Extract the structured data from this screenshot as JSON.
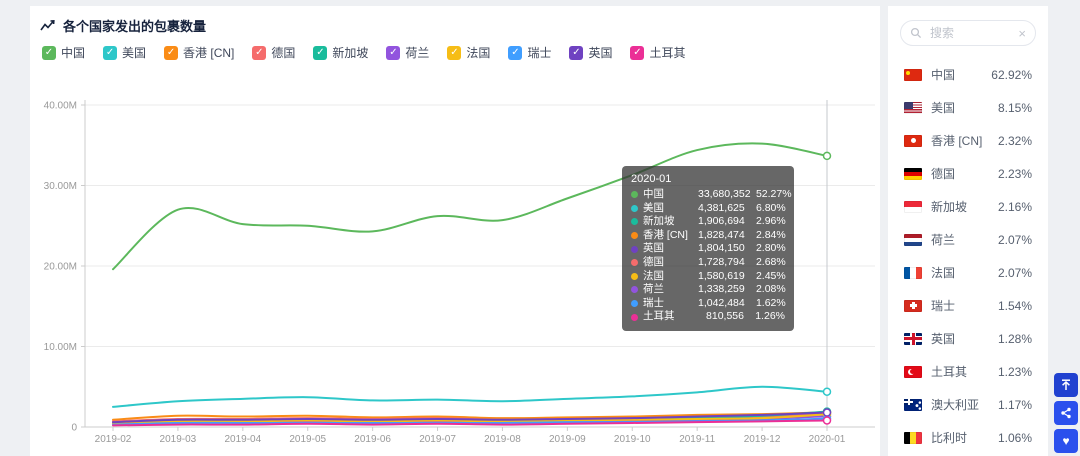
{
  "header": {
    "title": "各个国家发出的包裹数量"
  },
  "icons": {
    "trend": "trend-line",
    "checkbox_check_glyph": "✓",
    "search": "magnifier",
    "clear_glyph": "×",
    "back_to_top": "arrow-up-to-line",
    "share": "share-nodes",
    "favorite_glyph": "♥"
  },
  "legend": {
    "items": [
      {
        "label": "中国",
        "color": "#5cb85c",
        "checked": true
      },
      {
        "label": "美国",
        "color": "#2ec7c9",
        "checked": true
      },
      {
        "label": "香港 [CN]",
        "color": "#fa8c16",
        "checked": true
      },
      {
        "label": "德国",
        "color": "#f56c6c",
        "checked": true
      },
      {
        "label": "新加坡",
        "color": "#1abc9c",
        "checked": true
      },
      {
        "label": "荷兰",
        "color": "#9254de",
        "checked": true
      },
      {
        "label": "法国",
        "color": "#f6bd16",
        "checked": true
      },
      {
        "label": "瑞士",
        "color": "#409eff",
        "checked": true
      },
      {
        "label": "英国",
        "color": "#6f42c1",
        "checked": true
      },
      {
        "label": "土耳其",
        "color": "#eb2f96",
        "checked": true
      }
    ]
  },
  "chart_data": {
    "type": "line",
    "x": [
      "2019-02",
      "2019-03",
      "2019-04",
      "2019-05",
      "2019-06",
      "2019-07",
      "2019-08",
      "2019-09",
      "2019-10",
      "2019-11",
      "2019-12",
      "2020-01"
    ],
    "unit": "millions",
    "ylim": [
      0,
      40
    ],
    "y_ticks": [
      {
        "value": 40,
        "label": "40.00M"
      },
      {
        "value": 30,
        "label": "30.00M"
      },
      {
        "value": 20,
        "label": "20.00M"
      },
      {
        "value": 10,
        "label": "10.00M"
      },
      {
        "value": 0,
        "label": "0"
      }
    ],
    "grid": true,
    "legend_position": "top",
    "hover_index": 11,
    "series": [
      {
        "name": "中国",
        "color": "#5cb85c",
        "values": [
          19.6,
          27.0,
          25.2,
          25.0,
          24.3,
          26.2,
          25.7,
          28.4,
          31.3,
          34.4,
          35.2,
          33.68
        ]
      },
      {
        "name": "美国",
        "color": "#2ec7c9",
        "values": [
          2.5,
          3.2,
          3.5,
          3.7,
          3.3,
          3.4,
          3.2,
          3.5,
          3.8,
          4.3,
          5.0,
          4.38
        ]
      },
      {
        "name": "香港 [CN]",
        "color": "#fa8c16",
        "values": [
          0.9,
          1.4,
          1.3,
          1.4,
          1.2,
          1.3,
          1.1,
          1.2,
          1.3,
          1.5,
          1.6,
          1.83
        ]
      },
      {
        "name": "德国",
        "color": "#f56c6c",
        "values": [
          0.7,
          1.0,
          1.0,
          1.1,
          1.0,
          1.1,
          0.9,
          1.0,
          1.1,
          1.2,
          1.3,
          1.73
        ]
      },
      {
        "name": "新加坡",
        "color": "#1abc9c",
        "values": [
          0.5,
          0.8,
          0.8,
          0.9,
          0.8,
          0.9,
          0.8,
          0.9,
          1.0,
          1.2,
          1.4,
          1.91
        ]
      },
      {
        "name": "荷兰",
        "color": "#9254de",
        "values": [
          0.4,
          0.6,
          0.6,
          0.7,
          0.6,
          0.7,
          0.6,
          0.7,
          0.8,
          0.9,
          1.0,
          1.34
        ]
      },
      {
        "name": "法国",
        "color": "#f6bd16",
        "values": [
          0.5,
          0.7,
          0.7,
          0.8,
          0.7,
          0.8,
          0.7,
          0.8,
          0.9,
          1.0,
          1.1,
          1.58
        ]
      },
      {
        "name": "瑞士",
        "color": "#409eff",
        "values": [
          0.3,
          0.5,
          0.5,
          0.5,
          0.5,
          0.5,
          0.5,
          0.6,
          0.6,
          0.7,
          0.8,
          1.04
        ]
      },
      {
        "name": "英国",
        "color": "#6f42c1",
        "values": [
          0.6,
          0.9,
          0.9,
          1.0,
          0.9,
          1.0,
          0.9,
          1.0,
          1.1,
          1.3,
          1.5,
          1.8
        ]
      },
      {
        "name": "土耳其",
        "color": "#eb2f96",
        "values": [
          0.2,
          0.3,
          0.3,
          0.4,
          0.3,
          0.4,
          0.3,
          0.4,
          0.5,
          0.6,
          0.7,
          0.81
        ]
      }
    ]
  },
  "tooltip": {
    "title": "2020-01",
    "rows": [
      {
        "name": "中国",
        "value": "33,680,352",
        "percent": "52.27%",
        "color": "#5cb85c"
      },
      {
        "name": "美国",
        "value": "4,381,625",
        "percent": "6.80%",
        "color": "#2ec7c9"
      },
      {
        "name": "新加坡",
        "value": "1,906,694",
        "percent": "2.96%",
        "color": "#1abc9c"
      },
      {
        "name": "香港 [CN]",
        "value": "1,828,474",
        "percent": "2.84%",
        "color": "#fa8c16"
      },
      {
        "name": "英国",
        "value": "1,804,150",
        "percent": "2.80%",
        "color": "#6f42c1"
      },
      {
        "name": "德国",
        "value": "1,728,794",
        "percent": "2.68%",
        "color": "#f56c6c"
      },
      {
        "name": "法国",
        "value": "1,580,619",
        "percent": "2.45%",
        "color": "#f6bd16"
      },
      {
        "name": "荷兰",
        "value": "1,338,259",
        "percent": "2.08%",
        "color": "#9254de"
      },
      {
        "name": "瑞士",
        "value": "1,042,484",
        "percent": "1.62%",
        "color": "#409eff"
      },
      {
        "name": "土耳其",
        "value": "810,556",
        "percent": "1.26%",
        "color": "#eb2f96"
      }
    ]
  },
  "sidebar": {
    "search_placeholder": "搜索",
    "items": [
      {
        "name": "中国",
        "percent": "62.92%",
        "flag": "cn"
      },
      {
        "name": "美国",
        "percent": "8.15%",
        "flag": "us"
      },
      {
        "name": "香港 [CN]",
        "percent": "2.32%",
        "flag": "hk"
      },
      {
        "name": "德国",
        "percent": "2.23%",
        "flag": "de"
      },
      {
        "name": "新加坡",
        "percent": "2.16%",
        "flag": "sg"
      },
      {
        "name": "荷兰",
        "percent": "2.07%",
        "flag": "nl"
      },
      {
        "name": "法国",
        "percent": "2.07%",
        "flag": "fr"
      },
      {
        "name": "瑞士",
        "percent": "1.54%",
        "flag": "ch"
      },
      {
        "name": "英国",
        "percent": "1.28%",
        "flag": "gb"
      },
      {
        "name": "土耳其",
        "percent": "1.23%",
        "flag": "tr"
      },
      {
        "name": "澳大利亚",
        "percent": "1.17%",
        "flag": "au"
      },
      {
        "name": "比利时",
        "percent": "1.06%",
        "flag": "be"
      }
    ]
  }
}
